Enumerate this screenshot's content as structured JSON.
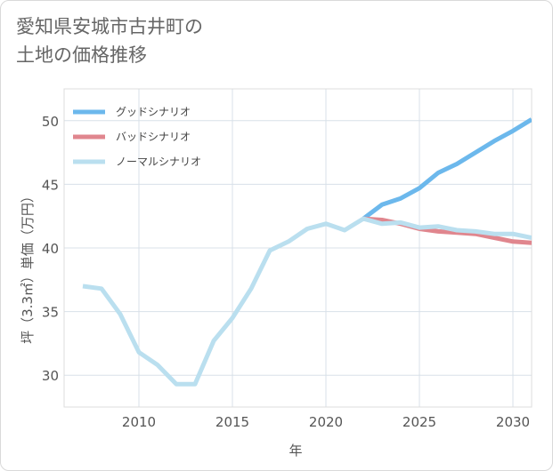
{
  "title_line1": "愛知県安城市古井町の",
  "title_line2": "土地の価格推移",
  "chart_data": {
    "type": "line",
    "xlabel": "年",
    "ylabel": "坪（3.3㎡）単価（万円）",
    "xlim": [
      2006,
      2031
    ],
    "ylim": [
      27.5,
      52.5
    ],
    "x_ticks": [
      2010,
      2015,
      2020,
      2025,
      2030
    ],
    "y_ticks": [
      30,
      35,
      40,
      45,
      50
    ],
    "grid": true,
    "legend_position": "top-left",
    "series": [
      {
        "name": "グッドシナリオ",
        "color": "#6cb8ec",
        "x": [
          2022,
          2023,
          2024,
          2025,
          2026,
          2027,
          2028,
          2029,
          2030,
          2031
        ],
        "y": [
          42.3,
          43.4,
          43.9,
          44.7,
          45.9,
          46.6,
          47.5,
          48.4,
          49.2,
          50.1
        ]
      },
      {
        "name": "バッドシナリオ",
        "color": "#e0868e",
        "x": [
          2022,
          2023,
          2024,
          2025,
          2026,
          2027,
          2028,
          2029,
          2030,
          2031
        ],
        "y": [
          42.3,
          42.2,
          41.9,
          41.5,
          41.3,
          41.2,
          41.1,
          40.8,
          40.5,
          40.4
        ]
      },
      {
        "name": "ノーマルシナリオ",
        "color": "#badfef",
        "x": [
          2007,
          2008,
          2009,
          2010,
          2011,
          2012,
          2013,
          2014,
          2015,
          2016,
          2017,
          2018,
          2019,
          2020,
          2021,
          2022,
          2023,
          2024,
          2025,
          2026,
          2027,
          2028,
          2029,
          2030,
          2031
        ],
        "y": [
          37.0,
          36.8,
          34.8,
          31.8,
          30.8,
          29.3,
          29.3,
          32.7,
          34.5,
          36.8,
          39.8,
          40.5,
          41.5,
          41.9,
          41.4,
          42.3,
          41.9,
          42.0,
          41.6,
          41.7,
          41.4,
          41.3,
          41.1,
          41.1,
          40.8
        ]
      }
    ]
  }
}
